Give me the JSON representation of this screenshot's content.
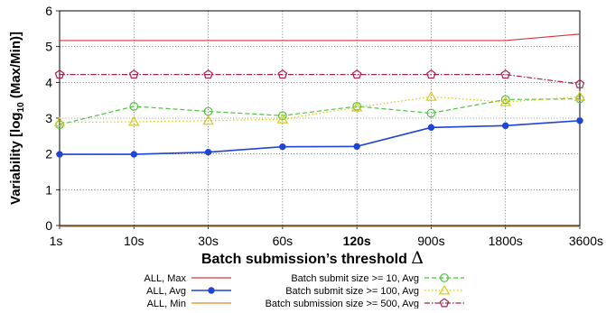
{
  "chart_data": {
    "type": "line",
    "xlabel_main": "Batch submission’s threshold",
    "xlabel_symbol": "Δ",
    "ylabel_parts": {
      "pre": "Variability [log",
      "sub": "10",
      "post": " (Max/Min)]"
    },
    "categories": [
      "1s",
      "10s",
      "30s",
      "60s",
      "120s",
      "900s",
      "1800s",
      "3600s"
    ],
    "highlight_category": "120s",
    "ylim": [
      0,
      6
    ],
    "yticks": [
      "0",
      "1",
      "2",
      "3",
      "4",
      "5",
      "6"
    ],
    "grid": true,
    "series": [
      {
        "name": "ALL, Max",
        "color": "#d9343a",
        "dash": "solid",
        "marker": "none",
        "values": [
          5.17,
          5.17,
          5.17,
          5.17,
          5.17,
          5.17,
          5.17,
          5.35
        ]
      },
      {
        "name": "ALL, Avg",
        "color": "#1f44d6",
        "dash": "solid",
        "marker": "dot",
        "values": [
          1.99,
          1.99,
          2.05,
          2.2,
          2.21,
          2.74,
          2.79,
          2.93
        ]
      },
      {
        "name": "ALL, Min",
        "color": "#e38a1e",
        "dash": "solid",
        "marker": "none",
        "values": [
          -0.03,
          -0.03,
          -0.03,
          -0.03,
          -0.03,
          -0.03,
          -0.03,
          -0.03
        ]
      },
      {
        "name": "Batch submit size >= 10, Avg",
        "color": "#4cc53c",
        "dash": "dashed",
        "marker": "circle",
        "values": [
          2.82,
          3.33,
          3.19,
          3.07,
          3.33,
          3.14,
          3.52,
          3.54
        ]
      },
      {
        "name": "Batch submit size >= 100, Avg",
        "color": "#d9c81c",
        "dash": "dotted",
        "marker": "triangle",
        "values": [
          2.88,
          2.9,
          2.93,
          2.97,
          3.3,
          3.6,
          3.45,
          3.6
        ]
      },
      {
        "name": "Batch submission size >= 500, Avg",
        "color": "#a3224a",
        "dash": "dashdot",
        "marker": "pentagon",
        "values": [
          4.22,
          4.22,
          4.22,
          4.22,
          4.22,
          4.22,
          4.22,
          3.95
        ]
      }
    ],
    "legend_position": "bottom"
  }
}
